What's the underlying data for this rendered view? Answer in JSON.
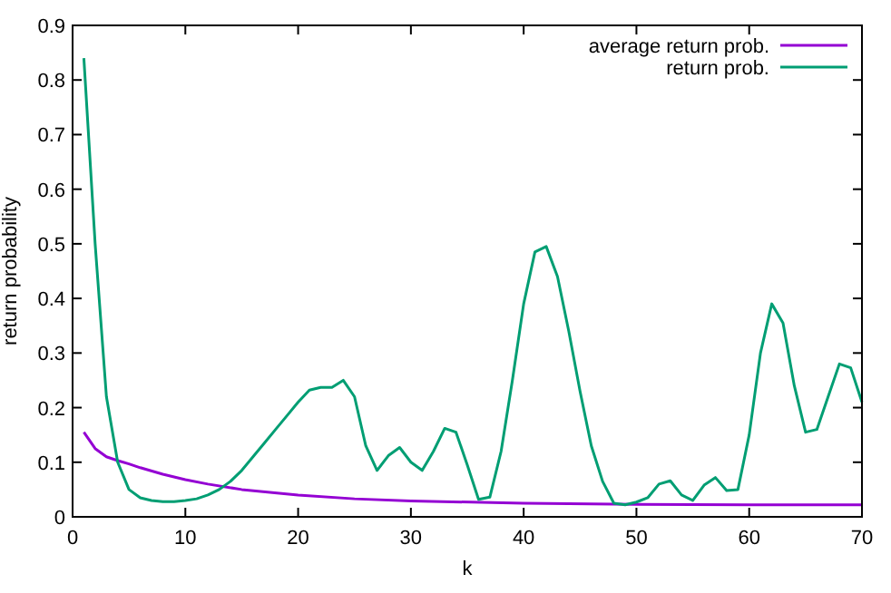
{
  "chart_data": {
    "type": "line",
    "xlabel": "k",
    "ylabel": "return probability",
    "xlim": [
      0,
      70
    ],
    "xticks": [
      0,
      10,
      20,
      30,
      40,
      50,
      60,
      70
    ],
    "ylim": [
      0,
      0.9
    ],
    "yticks": [
      0,
      0.1,
      0.2,
      0.3,
      0.4,
      0.5,
      0.6,
      0.7,
      0.8,
      0.9
    ],
    "legend": "top right",
    "grid": false,
    "series": [
      {
        "name": "average return prob.",
        "color": "#9400d3",
        "x": [
          1,
          2,
          3,
          4,
          5,
          6,
          8,
          10,
          12,
          15,
          20,
          25,
          30,
          40,
          50,
          60,
          70
        ],
        "values": [
          0.155,
          0.125,
          0.11,
          0.103,
          0.097,
          0.09,
          0.078,
          0.068,
          0.06,
          0.05,
          0.04,
          0.033,
          0.029,
          0.025,
          0.023,
          0.022,
          0.022
        ]
      },
      {
        "name": "return prob.",
        "color": "#009e73",
        "x": [
          1,
          2,
          3,
          4,
          5,
          6,
          7,
          8,
          9,
          10,
          11,
          12,
          13,
          14,
          15,
          16,
          17,
          18,
          19,
          20,
          21,
          22,
          23,
          24,
          25,
          26,
          27,
          28,
          29,
          30,
          31,
          32,
          33,
          34,
          35,
          36,
          37,
          38,
          39,
          40,
          41,
          42,
          43,
          44,
          45,
          46,
          47,
          48,
          49,
          50,
          51,
          52,
          53,
          54,
          55,
          56,
          57,
          58,
          59,
          60,
          61,
          62,
          63,
          64,
          65,
          66,
          67,
          68,
          69,
          70
        ],
        "values": [
          0.84,
          0.5,
          0.22,
          0.1,
          0.05,
          0.035,
          0.03,
          0.028,
          0.028,
          0.03,
          0.033,
          0.04,
          0.05,
          0.065,
          0.085,
          0.11,
          0.135,
          0.16,
          0.185,
          0.21,
          0.232,
          0.237,
          0.237,
          0.25,
          0.22,
          0.13,
          0.085,
          0.112,
          0.127,
          0.1,
          0.085,
          0.12,
          0.162,
          0.155,
          0.095,
          0.032,
          0.036,
          0.12,
          0.25,
          0.39,
          0.485,
          0.495,
          0.44,
          0.34,
          0.23,
          0.13,
          0.065,
          0.025,
          0.022,
          0.027,
          0.035,
          0.06,
          0.066,
          0.04,
          0.03,
          0.058,
          0.072,
          0.048,
          0.05,
          0.15,
          0.3,
          0.39,
          0.355,
          0.24,
          0.155,
          0.16,
          0.22,
          0.28,
          0.273,
          0.21
        ]
      }
    ]
  }
}
